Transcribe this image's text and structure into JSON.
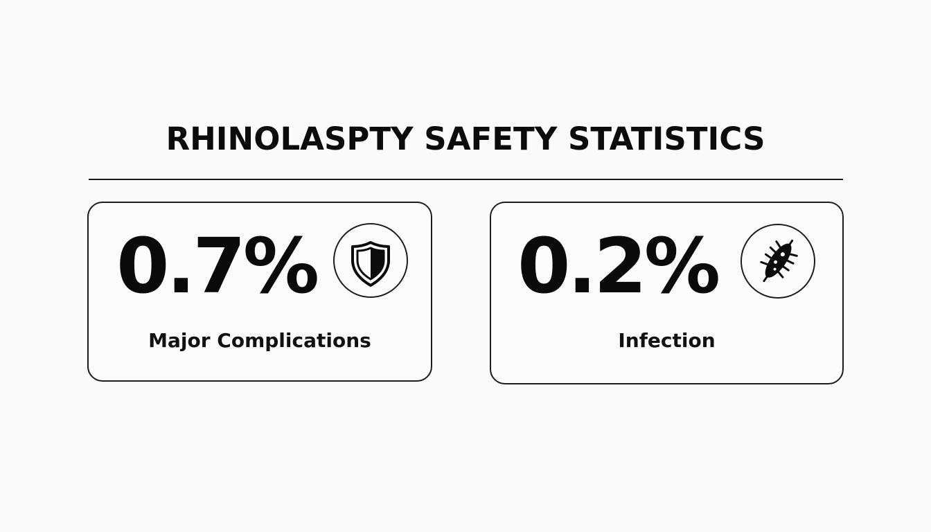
{
  "title": "RHINOLASPTY SAFETY STATISTICS",
  "stats": [
    {
      "value": "0.7%",
      "label": "Major Complications",
      "icon": "shield-icon"
    },
    {
      "value": "0.2%",
      "label": "Infection",
      "icon": "bacteria-icon"
    }
  ],
  "colors": {
    "background": "#fafafa",
    "text": "#0b0b0b",
    "border": "#1c1c1c"
  }
}
